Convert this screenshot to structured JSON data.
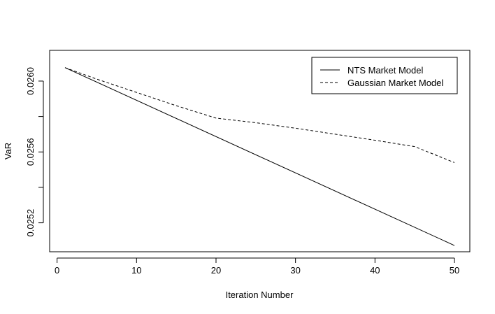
{
  "chart_data": {
    "type": "line",
    "title": "",
    "xlabel": "Iteration Number",
    "ylabel": "VaR",
    "xlim": [
      1,
      50
    ],
    "ylim": [
      0.02508,
      0.02613
    ],
    "x_ticks": [
      0,
      10,
      20,
      30,
      40,
      50
    ],
    "x_tick_labels": [
      "0",
      "10",
      "20",
      "30",
      "40",
      "50"
    ],
    "y_ticks": [
      0.0252,
      0.0254,
      0.0256,
      0.0258,
      0.026
    ],
    "y_tick_labels": [
      "0.0252",
      "",
      "0.0256",
      "",
      "0.0260"
    ],
    "grid": false,
    "legend_position": "top-right",
    "series": [
      {
        "name": "NTS Market Model",
        "line_style": "solid",
        "color": "#000000",
        "x": [
          1,
          50
        ],
        "values": [
          0.026076,
          0.025072
        ]
      },
      {
        "name": "Gaussian Market Model",
        "line_style": "dashed",
        "color": "#000000",
        "x": [
          1,
          5,
          10,
          15,
          20,
          25,
          30,
          35,
          40,
          45,
          50
        ],
        "values": [
          0.026076,
          0.026011,
          0.025936,
          0.025861,
          0.025791,
          0.025765,
          0.025734,
          0.0257,
          0.025666,
          0.02563,
          0.02554
        ]
      }
    ]
  }
}
